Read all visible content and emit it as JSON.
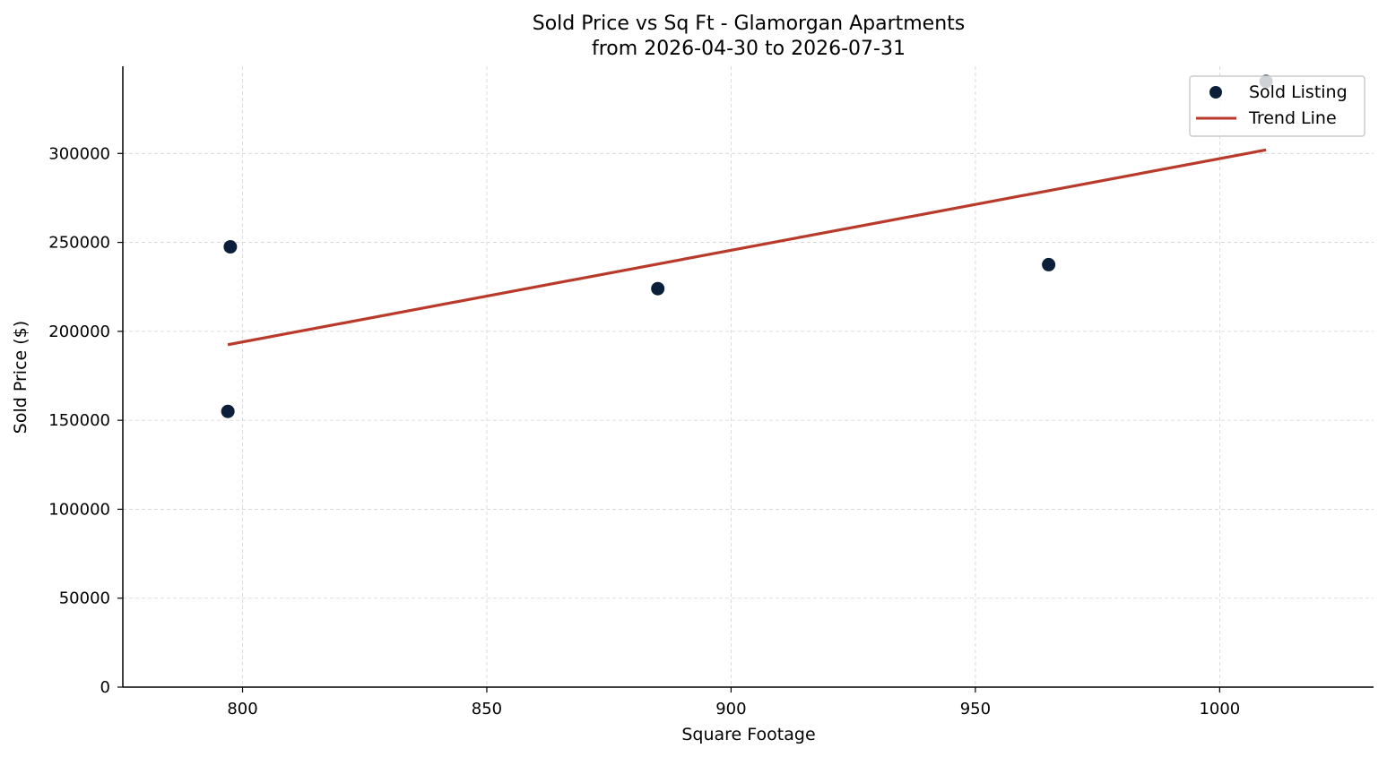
{
  "chart_data": {
    "type": "scatter",
    "title": "Sold Price vs Sq Ft - Glamorgan Apartments",
    "subtitle": "from 2026-04-30 to 2026-07-31",
    "xlabel": "Square Footage",
    "ylabel": "Sold Price ($)",
    "xlim": [
      775.5,
      1031.5
    ],
    "ylim": [
      0,
      349000
    ],
    "xticks": [
      800,
      850,
      900,
      950,
      1000
    ],
    "yticks": [
      0,
      50000,
      100000,
      150000,
      200000,
      250000,
      300000
    ],
    "grid": true,
    "legend_position": "top-right",
    "series": [
      {
        "name": "Sold Listing",
        "kind": "scatter",
        "color": "#0b1f3a",
        "points": [
          {
            "x": 797,
            "y": 155000
          },
          {
            "x": 797.5,
            "y": 247500
          },
          {
            "x": 885,
            "y": 224000
          },
          {
            "x": 965,
            "y": 237500
          },
          {
            "x": 1009.5,
            "y": 340500
          }
        ]
      },
      {
        "name": "Trend Line",
        "kind": "line",
        "color": "#b93a2b",
        "points": [
          {
            "x": 797,
            "y": 192500
          },
          {
            "x": 1009.5,
            "y": 302000
          }
        ]
      }
    ]
  }
}
